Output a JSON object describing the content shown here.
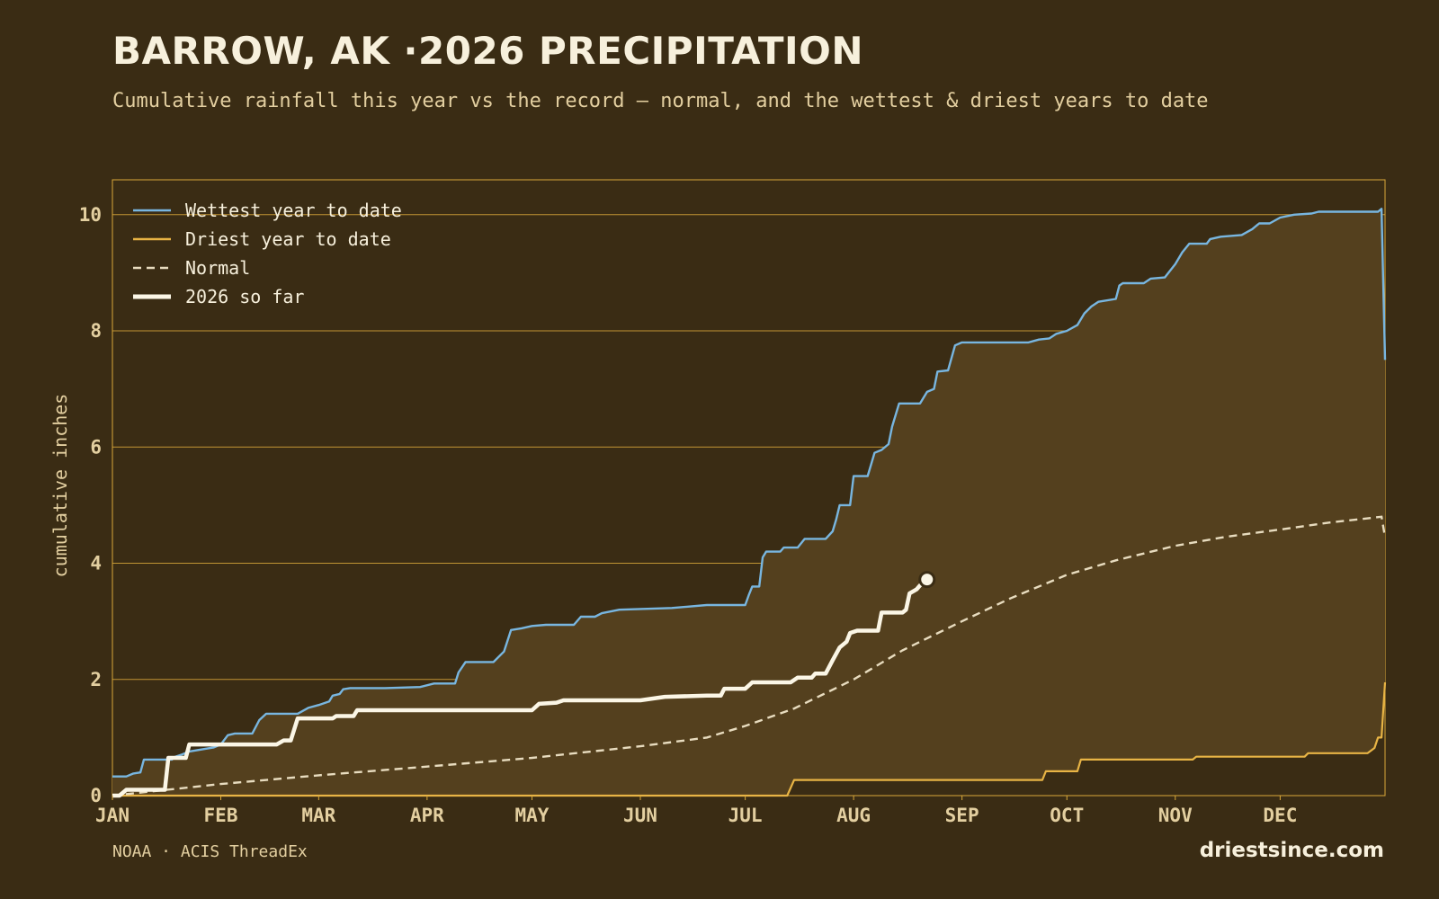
{
  "header": {
    "title": "BARROW, AK ·2026 PRECIPITATION",
    "subtitle": "Cumulative rainfall this year vs the record — normal, and the wettest & driest years to date"
  },
  "footer": {
    "source": "NOAA · ACIS ThreadEx",
    "brand": "driestsince.com"
  },
  "colors": {
    "background": "#3a2c14",
    "band_fill": "#54401e",
    "grid": "#d9a83a",
    "wettest": "#78b6e0",
    "driest": "#e8b445",
    "normal": "#e8dcbf",
    "current": "#fbf6e6",
    "text": "#e3cfa0"
  },
  "chart_data": {
    "type": "line",
    "ylabel": "cumulative inches",
    "xlabel": "",
    "ylim": [
      0,
      10.6
    ],
    "xlim": [
      "2026-01-01",
      "2026-12-31"
    ],
    "y_ticks": [
      "0",
      "2",
      "4",
      "6",
      "8",
      "10"
    ],
    "x_ticks": [
      "JAN",
      "FEB",
      "MAR",
      "APR",
      "MAY",
      "JUN",
      "JUL",
      "AUG",
      "SEP",
      "OCT",
      "NOV",
      "DEC"
    ],
    "x_tick_dates": [
      "2026-01-01",
      "2026-02-01",
      "2026-03-01",
      "2026-04-01",
      "2026-05-01",
      "2026-06-01",
      "2026-07-01",
      "2026-08-01",
      "2026-09-01",
      "2026-10-01",
      "2026-11-01",
      "2026-12-01"
    ],
    "grid": "horizontal",
    "legend_position": "top-left",
    "shaded_band": "between driest and wettest",
    "series": [
      {
        "name": "Wettest year to date",
        "style": "solid",
        "color": "#78b6e0",
        "points": [
          [
            "2026-01-01",
            0.33
          ],
          [
            "2026-01-05",
            0.33
          ],
          [
            "2026-01-07",
            0.38
          ],
          [
            "2026-01-09",
            0.4
          ],
          [
            "2026-01-10",
            0.62
          ],
          [
            "2026-01-18",
            0.62
          ],
          [
            "2026-01-19",
            0.67
          ],
          [
            "2026-01-21",
            0.71
          ],
          [
            "2026-01-23",
            0.76
          ],
          [
            "2026-01-27",
            0.8
          ],
          [
            "2026-01-30",
            0.83
          ],
          [
            "2026-02-01",
            0.88
          ],
          [
            "2026-02-03",
            1.04
          ],
          [
            "2026-02-05",
            1.07
          ],
          [
            "2026-02-10",
            1.07
          ],
          [
            "2026-02-12",
            1.3
          ],
          [
            "2026-02-14",
            1.41
          ],
          [
            "2026-02-23",
            1.41
          ],
          [
            "2026-02-26",
            1.51
          ],
          [
            "2026-03-01",
            1.56
          ],
          [
            "2026-03-04",
            1.62
          ],
          [
            "2026-03-05",
            1.72
          ],
          [
            "2026-03-07",
            1.75
          ],
          [
            "2026-03-08",
            1.83
          ],
          [
            "2026-03-10",
            1.85
          ],
          [
            "2026-03-20",
            1.85
          ],
          [
            "2026-03-30",
            1.87
          ],
          [
            "2026-04-03",
            1.93
          ],
          [
            "2026-04-09",
            1.93
          ],
          [
            "2026-04-10",
            2.12
          ],
          [
            "2026-04-12",
            2.3
          ],
          [
            "2026-04-20",
            2.3
          ],
          [
            "2026-04-23",
            2.48
          ],
          [
            "2026-04-25",
            2.85
          ],
          [
            "2026-04-28",
            2.88
          ],
          [
            "2026-05-01",
            2.92
          ],
          [
            "2026-05-05",
            2.94
          ],
          [
            "2026-05-13",
            2.94
          ],
          [
            "2026-05-15",
            3.08
          ],
          [
            "2026-05-19",
            3.08
          ],
          [
            "2026-05-21",
            3.14
          ],
          [
            "2026-05-26",
            3.2
          ],
          [
            "2026-06-10",
            3.23
          ],
          [
            "2026-06-20",
            3.28
          ],
          [
            "2026-07-01",
            3.28
          ],
          [
            "2026-07-02",
            3.45
          ],
          [
            "2026-07-03",
            3.6
          ],
          [
            "2026-07-05",
            3.6
          ],
          [
            "2026-07-06",
            4.1
          ],
          [
            "2026-07-07",
            4.2
          ],
          [
            "2026-07-11",
            4.2
          ],
          [
            "2026-07-12",
            4.27
          ],
          [
            "2026-07-16",
            4.27
          ],
          [
            "2026-07-18",
            4.42
          ],
          [
            "2026-07-24",
            4.42
          ],
          [
            "2026-07-26",
            4.55
          ],
          [
            "2026-07-27",
            4.75
          ],
          [
            "2026-07-28",
            5.0
          ],
          [
            "2026-07-31",
            5.0
          ],
          [
            "2026-08-01",
            5.5
          ],
          [
            "2026-08-05",
            5.5
          ],
          [
            "2026-08-07",
            5.9
          ],
          [
            "2026-08-09",
            5.95
          ],
          [
            "2026-08-11",
            6.05
          ],
          [
            "2026-08-12",
            6.35
          ],
          [
            "2026-08-14",
            6.75
          ],
          [
            "2026-08-20",
            6.75
          ],
          [
            "2026-08-22",
            6.95
          ],
          [
            "2026-08-24",
            7.0
          ],
          [
            "2026-08-25",
            7.3
          ],
          [
            "2026-08-28",
            7.32
          ],
          [
            "2026-08-30",
            7.75
          ],
          [
            "2026-09-01",
            7.8
          ],
          [
            "2026-09-20",
            7.8
          ],
          [
            "2026-09-23",
            7.85
          ],
          [
            "2026-09-26",
            7.87
          ],
          [
            "2026-09-28",
            7.95
          ],
          [
            "2026-10-01",
            8.0
          ],
          [
            "2026-10-04",
            8.1
          ],
          [
            "2026-10-06",
            8.3
          ],
          [
            "2026-10-08",
            8.42
          ],
          [
            "2026-10-10",
            8.5
          ],
          [
            "2026-10-15",
            8.55
          ],
          [
            "2026-10-16",
            8.78
          ],
          [
            "2026-10-17",
            8.82
          ],
          [
            "2026-10-23",
            8.82
          ],
          [
            "2026-10-25",
            8.9
          ],
          [
            "2026-10-29",
            8.92
          ],
          [
            "2026-11-01",
            9.15
          ],
          [
            "2026-11-03",
            9.35
          ],
          [
            "2026-11-05",
            9.5
          ],
          [
            "2026-11-10",
            9.5
          ],
          [
            "2026-11-11",
            9.58
          ],
          [
            "2026-11-14",
            9.62
          ],
          [
            "2026-11-20",
            9.65
          ],
          [
            "2026-11-23",
            9.75
          ],
          [
            "2026-11-25",
            9.85
          ],
          [
            "2026-11-28",
            9.85
          ],
          [
            "2026-12-01",
            9.95
          ],
          [
            "2026-12-05",
            10.0
          ],
          [
            "2026-12-10",
            10.02
          ],
          [
            "2026-12-12",
            10.05
          ],
          [
            "2026-12-29",
            10.05
          ],
          [
            "2026-12-30",
            10.1
          ],
          [
            "2026-12-31",
            7.5
          ]
        ]
      },
      {
        "name": "Driest year to date",
        "style": "solid",
        "color": "#e8b445",
        "points": [
          [
            "2026-01-01",
            0.0
          ],
          [
            "2026-07-13",
            0.0
          ],
          [
            "2026-07-15",
            0.27
          ],
          [
            "2026-09-24",
            0.27
          ],
          [
            "2026-09-25",
            0.42
          ],
          [
            "2026-10-04",
            0.42
          ],
          [
            "2026-10-05",
            0.62
          ],
          [
            "2026-11-06",
            0.62
          ],
          [
            "2026-11-07",
            0.67
          ],
          [
            "2026-12-08",
            0.67
          ],
          [
            "2026-12-09",
            0.73
          ],
          [
            "2026-12-26",
            0.73
          ],
          [
            "2026-12-28",
            0.82
          ],
          [
            "2026-12-29",
            1.0
          ],
          [
            "2026-12-30",
            1.0
          ],
          [
            "2026-12-31",
            1.95
          ]
        ]
      },
      {
        "name": "Normal",
        "style": "dashed",
        "color": "#e8dcbf",
        "points": [
          [
            "2026-01-01",
            0.0
          ],
          [
            "2026-02-01",
            0.2
          ],
          [
            "2026-03-01",
            0.35
          ],
          [
            "2026-04-01",
            0.5
          ],
          [
            "2026-05-01",
            0.65
          ],
          [
            "2026-06-01",
            0.85
          ],
          [
            "2026-06-20",
            1.0
          ],
          [
            "2026-07-01",
            1.2
          ],
          [
            "2026-07-15",
            1.5
          ],
          [
            "2026-08-01",
            2.0
          ],
          [
            "2026-08-15",
            2.5
          ],
          [
            "2026-09-01",
            3.0
          ],
          [
            "2026-09-15",
            3.4
          ],
          [
            "2026-10-01",
            3.8
          ],
          [
            "2026-10-15",
            4.05
          ],
          [
            "2026-11-01",
            4.3
          ],
          [
            "2026-11-15",
            4.45
          ],
          [
            "2026-12-01",
            4.58
          ],
          [
            "2026-12-15",
            4.7
          ],
          [
            "2026-12-30",
            4.8
          ],
          [
            "2026-12-31",
            4.45
          ]
        ]
      },
      {
        "name": "2026 so far",
        "style": "solid-thick",
        "color": "#fbf6e6",
        "end_marker": true,
        "points": [
          [
            "2026-01-01",
            0.0
          ],
          [
            "2026-01-03",
            0.0
          ],
          [
            "2026-01-05",
            0.1
          ],
          [
            "2026-01-16",
            0.1
          ],
          [
            "2026-01-17",
            0.65
          ],
          [
            "2026-01-22",
            0.65
          ],
          [
            "2026-01-23",
            0.88
          ],
          [
            "2026-02-17",
            0.88
          ],
          [
            "2026-02-19",
            0.95
          ],
          [
            "2026-02-21",
            0.95
          ],
          [
            "2026-02-23",
            1.33
          ],
          [
            "2026-03-05",
            1.33
          ],
          [
            "2026-03-06",
            1.37
          ],
          [
            "2026-03-11",
            1.37
          ],
          [
            "2026-03-12",
            1.47
          ],
          [
            "2026-05-01",
            1.47
          ],
          [
            "2026-05-03",
            1.58
          ],
          [
            "2026-05-08",
            1.6
          ],
          [
            "2026-05-10",
            1.64
          ],
          [
            "2026-06-01",
            1.64
          ],
          [
            "2026-06-08",
            1.7
          ],
          [
            "2026-06-20",
            1.72
          ],
          [
            "2026-06-24",
            1.72
          ],
          [
            "2026-06-25",
            1.84
          ],
          [
            "2026-07-01",
            1.84
          ],
          [
            "2026-07-03",
            1.95
          ],
          [
            "2026-07-14",
            1.95
          ],
          [
            "2026-07-16",
            2.03
          ],
          [
            "2026-07-20",
            2.03
          ],
          [
            "2026-07-21",
            2.1
          ],
          [
            "2026-07-24",
            2.1
          ],
          [
            "2026-07-26",
            2.33
          ],
          [
            "2026-07-28",
            2.55
          ],
          [
            "2026-07-30",
            2.65
          ],
          [
            "2026-07-31",
            2.8
          ],
          [
            "2026-08-02",
            2.84
          ],
          [
            "2026-08-08",
            2.84
          ],
          [
            "2026-08-09",
            3.15
          ],
          [
            "2026-08-15",
            3.15
          ],
          [
            "2026-08-16",
            3.2
          ],
          [
            "2026-08-17",
            3.48
          ],
          [
            "2026-08-19",
            3.55
          ],
          [
            "2026-08-20",
            3.62
          ],
          [
            "2026-08-22",
            3.72
          ]
        ]
      }
    ]
  }
}
